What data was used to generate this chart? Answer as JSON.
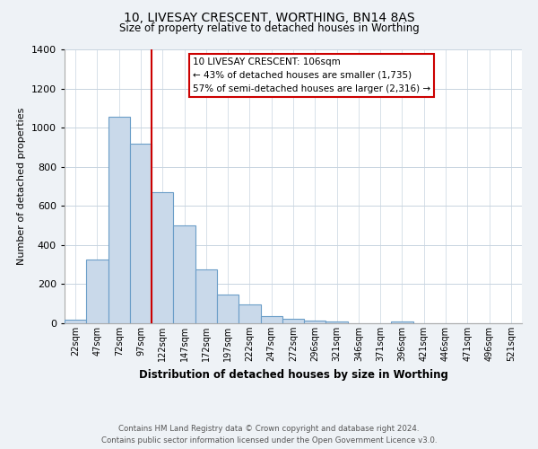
{
  "title": "10, LIVESAY CRESCENT, WORTHING, BN14 8AS",
  "subtitle": "Size of property relative to detached houses in Worthing",
  "xlabel": "Distribution of detached houses by size in Worthing",
  "ylabel": "Number of detached properties",
  "bar_labels": [
    "22sqm",
    "47sqm",
    "72sqm",
    "97sqm",
    "122sqm",
    "147sqm",
    "172sqm",
    "197sqm",
    "222sqm",
    "247sqm",
    "272sqm",
    "296sqm",
    "321sqm",
    "346sqm",
    "371sqm",
    "396sqm",
    "421sqm",
    "446sqm",
    "471sqm",
    "496sqm",
    "521sqm"
  ],
  "bar_values": [
    20,
    328,
    1055,
    920,
    670,
    500,
    275,
    148,
    95,
    38,
    22,
    15,
    10,
    0,
    0,
    8,
    0,
    0,
    0,
    0,
    0
  ],
  "bar_color": "#c9d9ea",
  "bar_edge_color": "#6b9ec8",
  "vline_x": 3.5,
  "vline_color": "#cc0000",
  "ylim": [
    0,
    1400
  ],
  "yticks": [
    0,
    200,
    400,
    600,
    800,
    1000,
    1200,
    1400
  ],
  "annotation_box_text": "10 LIVESAY CRESCENT: 106sqm\n← 43% of detached houses are smaller (1,735)\n57% of semi-detached houses are larger (2,316) →",
  "footer_line1": "Contains HM Land Registry data © Crown copyright and database right 2024.",
  "footer_line2": "Contains public sector information licensed under the Open Government Licence v3.0.",
  "bg_color": "#eef2f6",
  "plot_bg_color": "#ffffff",
  "grid_color": "#c8d4e0"
}
